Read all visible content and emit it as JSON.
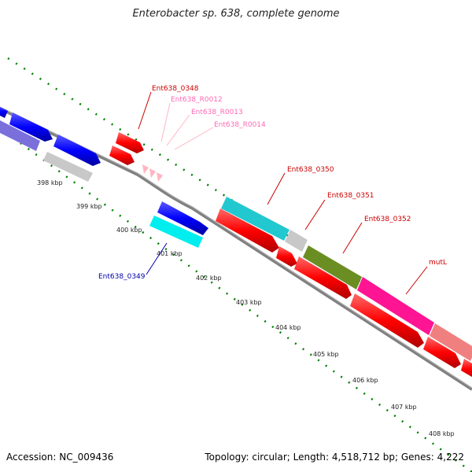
{
  "title": "Enterobacter sp. 638, complete genome",
  "footer": {
    "accession_label": "Accession: NC_009436",
    "stats_label": "Topology: circular; Length: 4,518,712 bp; Genes: 4,222"
  },
  "kbp_ticks": [
    "398 kbp",
    "399 kbp",
    "400 kbp",
    "401 kbp",
    "402 kbp",
    "403 kbp",
    "404 kbp",
    "405 kbp",
    "406 kbp",
    "407 kbp",
    "408 kbp"
  ],
  "gene_labels": {
    "ent0348": "Ent638_0348",
    "r0012": "Ent638_R0012",
    "r0013": "Ent638_R0013",
    "r0014": "Ent638_R0014",
    "ent0349": "Ent638_0349",
    "ent0350": "Ent638_0350",
    "ent0351": "Ent638_0351",
    "ent0352": "Ent638_0352",
    "mutl": "mutL"
  },
  "colors": {
    "cds": "#ff0000",
    "cds_blue": "#0000ff",
    "violet": "#7b6fdc",
    "grey": "#c8c8c8",
    "cyan": "#22c8d0",
    "olive": "#6b8e23",
    "magenta": "#ff1493",
    "salmon": "#f08080",
    "trna": "#ffb6c1",
    "backbone": "#808080",
    "tick": "#008000",
    "label_red": "#cc0000",
    "label_pink": "#ff69b4",
    "label_blue": "#0000aa"
  }
}
